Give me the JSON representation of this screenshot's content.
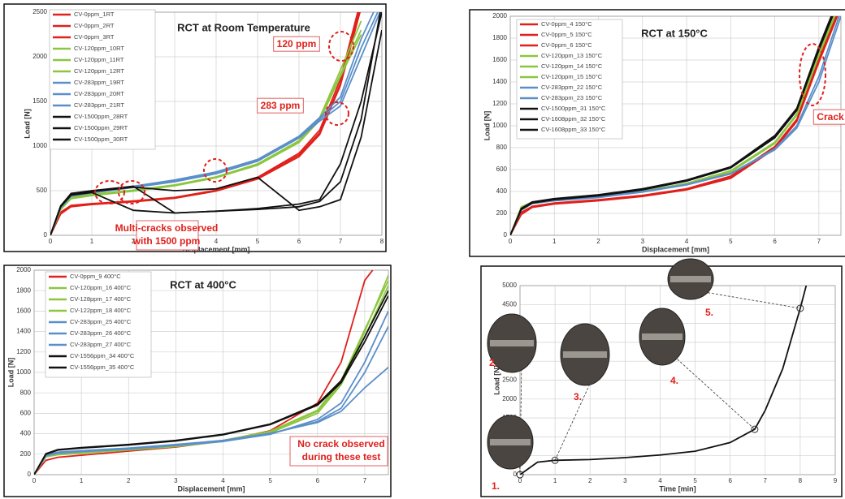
{
  "chart_data": [
    {
      "type": "line",
      "title": "RCT at Room Temperature",
      "x_label": "Displacement [mm]",
      "y_label": "Load [N]",
      "x": [
        0,
        0.25,
        0.5,
        1,
        2,
        3,
        4,
        5,
        6,
        6.5,
        7,
        7.5,
        8
      ],
      "xlim": [
        0,
        8
      ],
      "xticks": [
        0,
        1,
        2,
        3,
        4,
        5,
        6,
        7,
        8
      ],
      "ylim": [
        0,
        2500
      ],
      "yticks": [
        0,
        500,
        1000,
        1500,
        2000,
        2500
      ],
      "grid": true,
      "annotations": [
        "120 ppm",
        "283 ppm",
        "Multi-cracks observed",
        "with 1500 ppm"
      ],
      "series": [
        {
          "name": "CV-0ppm_1RT",
          "color": "#e0201b",
          "values": [
            0,
            250,
            330,
            350,
            380,
            420,
            500,
            640,
            900,
            1150,
            1700,
            2600,
            null
          ]
        },
        {
          "name": "CV-0ppm_2RT",
          "color": "#e0201b",
          "values": [
            0,
            240,
            320,
            345,
            375,
            415,
            495,
            630,
            880,
            1130,
            1680,
            2550,
            null
          ]
        },
        {
          "name": "CV-0ppm_3RT",
          "color": "#e0201b",
          "values": [
            0,
            260,
            335,
            355,
            385,
            425,
            505,
            650,
            920,
            1180,
            1750,
            2650,
            null
          ]
        },
        {
          "name": "CV-120ppm_10RT",
          "color": "#8cc63f",
          "values": [
            0,
            300,
            420,
            450,
            500,
            560,
            650,
            790,
            1050,
            1300,
            1800,
            2300,
            null
          ]
        },
        {
          "name": "CV-120ppm_11RT",
          "color": "#8cc63f",
          "values": [
            0,
            310,
            430,
            460,
            505,
            565,
            655,
            800,
            1060,
            1320,
            1850,
            2400,
            null
          ]
        },
        {
          "name": "CV-120ppm_12RT",
          "color": "#8cc63f",
          "values": [
            0,
            290,
            410,
            445,
            495,
            555,
            645,
            785,
            1040,
            1290,
            1780,
            2250,
            null
          ]
        },
        {
          "name": "CV-283ppm_19RT",
          "color": "#5b8fc9",
          "values": [
            0,
            320,
            450,
            480,
            540,
            610,
            700,
            840,
            1100,
            1300,
            1500,
            2100,
            2600
          ]
        },
        {
          "name": "CV-283ppm_20RT",
          "color": "#5b8fc9",
          "values": [
            0,
            330,
            460,
            490,
            550,
            620,
            710,
            850,
            1110,
            1320,
            1550,
            2200,
            2700
          ]
        },
        {
          "name": "CV-283ppm_21RT",
          "color": "#5b8fc9",
          "values": [
            0,
            310,
            440,
            475,
            535,
            600,
            690,
            830,
            1090,
            1280,
            1450,
            2000,
            2550
          ]
        },
        {
          "name": "CV-1500ppm_28RT",
          "color": "#111111",
          "values": [
            0,
            330,
            460,
            490,
            540,
            500,
            520,
            650,
            280,
            320,
            400,
            1100,
            2300
          ]
        },
        {
          "name": "CV-1500ppm_29RT",
          "color": "#111111",
          "values": [
            0,
            320,
            450,
            480,
            280,
            250,
            270,
            300,
            350,
            400,
            800,
            1500,
            2500
          ]
        },
        {
          "name": "CV-1500ppm_30RT",
          "color": "#111111",
          "values": [
            0,
            330,
            470,
            500,
            550,
            250,
            270,
            290,
            320,
            380,
            600,
            1300,
            2600
          ]
        }
      ]
    },
    {
      "type": "line",
      "title": "RCT at 150°C",
      "x_label": "Displacement [mm]",
      "y_label": "Load [N]",
      "x": [
        0,
        0.25,
        0.5,
        1,
        2,
        3,
        4,
        5,
        6,
        6.5,
        7,
        7.5
      ],
      "xlim": [
        0,
        7.5
      ],
      "xticks": [
        0,
        1,
        2,
        3,
        4,
        5,
        6,
        7
      ],
      "ylim": [
        0,
        2000
      ],
      "yticks": [
        0,
        200,
        400,
        600,
        800,
        1000,
        1200,
        1400,
        1600,
        1800,
        2000
      ],
      "grid": true,
      "annotations": [
        "Crack"
      ],
      "series": [
        {
          "name": "CV-0ppm_4 150°C",
          "color": "#e0201b",
          "values": [
            0,
            200,
            260,
            290,
            320,
            360,
            420,
            530,
            800,
            1050,
            1600,
            2100
          ]
        },
        {
          "name": "CV-0ppm_5 150°C",
          "color": "#e0201b",
          "values": [
            0,
            190,
            255,
            285,
            315,
            355,
            415,
            520,
            790,
            1040,
            1580,
            2080
          ]
        },
        {
          "name": "CV-0ppm_6 150°C",
          "color": "#e0201b",
          "values": [
            0,
            210,
            265,
            295,
            325,
            365,
            425,
            540,
            810,
            1060,
            1620,
            2120
          ]
        },
        {
          "name": "CV-120ppm_13 150°C",
          "color": "#8cc63f",
          "values": [
            0,
            250,
            300,
            320,
            350,
            400,
            470,
            580,
            840,
            1100,
            1650,
            2150
          ]
        },
        {
          "name": "CV-120ppm_14 150°C",
          "color": "#8cc63f",
          "values": [
            0,
            260,
            305,
            325,
            355,
            405,
            475,
            590,
            850,
            1110,
            1660,
            2160
          ]
        },
        {
          "name": "CV-120ppm_15 150°C",
          "color": "#8cc63f",
          "values": [
            0,
            245,
            295,
            318,
            348,
            398,
            468,
            578,
            838,
            1098,
            1640,
            2140
          ]
        },
        {
          "name": "CV-283ppm_22 150°C",
          "color": "#5b8fc9",
          "values": [
            0,
            230,
            290,
            315,
            345,
            395,
            460,
            560,
            780,
            980,
            1400,
            2000
          ]
        },
        {
          "name": "CV-283ppm_23 150°C",
          "color": "#5b8fc9",
          "values": [
            0,
            235,
            295,
            320,
            350,
            400,
            465,
            565,
            790,
            1000,
            1450,
            2050
          ]
        },
        {
          "name": "CV-1500ppm_31 150°C",
          "color": "#111111",
          "values": [
            0,
            240,
            300,
            330,
            365,
            420,
            500,
            620,
            900,
            1150,
            1700,
            2200
          ]
        },
        {
          "name": "CV-1608ppm_32 150°C",
          "color": "#111111",
          "values": [
            0,
            245,
            305,
            335,
            370,
            425,
            505,
            625,
            910,
            1160,
            1720,
            2220
          ]
        },
        {
          "name": "CV-1608ppm_33 150°C",
          "color": "#111111",
          "values": [
            0,
            235,
            295,
            325,
            360,
            415,
            495,
            615,
            890,
            1140,
            1690,
            2190
          ]
        }
      ]
    },
    {
      "type": "line",
      "title": "RCT at 400°C",
      "x_label": "Displacement [mm]",
      "y_label": "Load [N]",
      "x": [
        0,
        0.25,
        0.5,
        1,
        2,
        3,
        4,
        5,
        6,
        6.5,
        7,
        7.5
      ],
      "xlim": [
        0,
        7.5
      ],
      "xticks": [
        0,
        1,
        2,
        3,
        4,
        5,
        6,
        7
      ],
      "ylim": [
        0,
        2000
      ],
      "yticks": [
        0,
        200,
        400,
        600,
        800,
        1000,
        1200,
        1400,
        1600,
        1800,
        2000
      ],
      "grid": true,
      "annotations": [
        "No crack observed",
        "during these test"
      ],
      "series": [
        {
          "name": "CV-0ppm_9 400°C",
          "color": "#e0201b",
          "values": [
            0,
            140,
            170,
            190,
            230,
            270,
            330,
            430,
            700,
            1100,
            1900,
            2200
          ]
        },
        {
          "name": "CV-120ppm_16 400°C",
          "color": "#8cc63f",
          "values": [
            0,
            180,
            200,
            215,
            245,
            280,
            330,
            420,
            620,
            900,
            1400,
            1950
          ]
        },
        {
          "name": "CV-128ppm_17 400°C",
          "color": "#8cc63f",
          "values": [
            0,
            175,
            195,
            210,
            240,
            275,
            325,
            410,
            600,
            880,
            1350,
            1850
          ]
        },
        {
          "name": "CV-122ppm_18 400°C",
          "color": "#8cc63f",
          "values": [
            0,
            185,
            205,
            220,
            250,
            285,
            335,
            425,
            630,
            920,
            1420,
            1900
          ]
        },
        {
          "name": "CV-283ppm_25 400°C",
          "color": "#5b8fc9",
          "values": [
            0,
            190,
            215,
            230,
            255,
            290,
            330,
            400,
            520,
            650,
            1000,
            1450
          ]
        },
        {
          "name": "CV-283ppm_26 400°C",
          "color": "#5b8fc9",
          "values": [
            0,
            195,
            220,
            235,
            260,
            295,
            335,
            405,
            510,
            620,
            850,
            1050
          ]
        },
        {
          "name": "CV-283ppm_27 400°C",
          "color": "#5b8fc9",
          "values": [
            0,
            185,
            210,
            225,
            250,
            285,
            325,
            395,
            540,
            700,
            1100,
            1600
          ]
        },
        {
          "name": "CV-1556ppm_34 400°C",
          "color": "#111111",
          "values": [
            0,
            200,
            240,
            260,
            290,
            330,
            390,
            490,
            680,
            900,
            1300,
            1750
          ]
        },
        {
          "name": "CV-1556ppm_35 400°C",
          "color": "#111111",
          "values": [
            0,
            205,
            245,
            265,
            295,
            335,
            395,
            495,
            690,
            920,
            1350,
            1800
          ]
        }
      ]
    },
    {
      "type": "line",
      "x_label": "Time [min]",
      "y_label": "Load [N]",
      "x": [
        0,
        0.5,
        1,
        2,
        3,
        4,
        5,
        6,
        6.7,
        7,
        7.5,
        8,
        8.2
      ],
      "xlim": [
        0,
        9
      ],
      "xticks": [
        0,
        1,
        2,
        3,
        4,
        5,
        6,
        7,
        8,
        9
      ],
      "ylim": [
        0,
        5000
      ],
      "yticks": [
        0,
        500,
        1000,
        1500,
        2000,
        2500,
        3000,
        3500,
        4000,
        4500,
        5000
      ],
      "grid": true,
      "annotations": [
        "1.",
        "2.",
        "3.",
        "4.",
        "5."
      ],
      "series": [
        {
          "name": "Load",
          "color": "#111111",
          "values": [
            0,
            330,
            380,
            400,
            450,
            520,
            620,
            850,
            1200,
            1700,
            2800,
            4400,
            5100
          ]
        }
      ]
    }
  ]
}
